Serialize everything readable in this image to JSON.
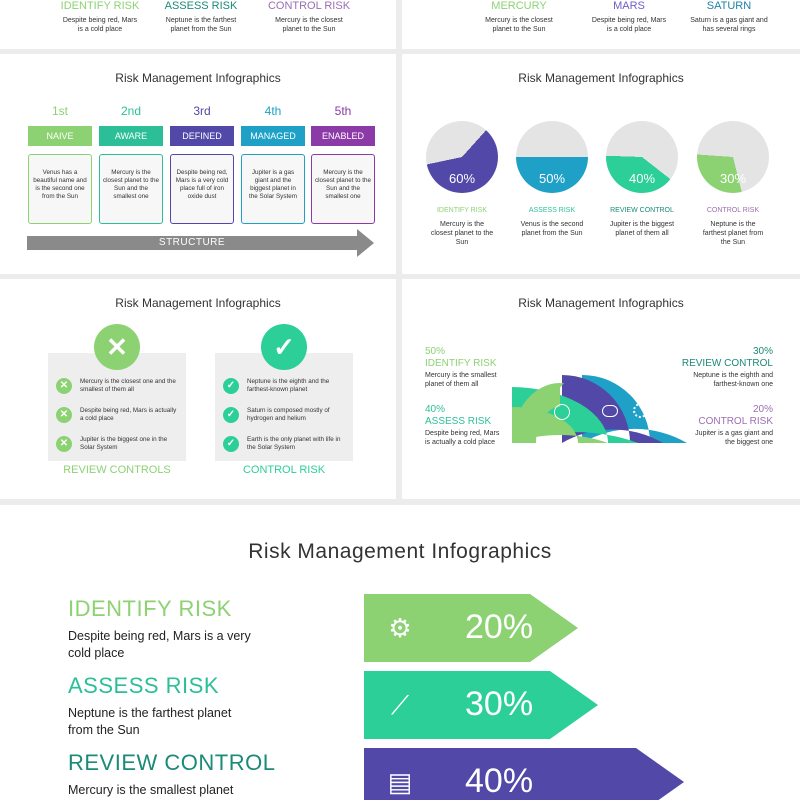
{
  "top_left": {
    "items": [
      {
        "title": "IDENTIFY RISK",
        "desc": "Despite being red, Mars is a cold place",
        "color": "#8cd273"
      },
      {
        "title": "ASSESS RISK",
        "desc": "Neptune is the farthest planet from the Sun",
        "color": "#1b8a78"
      },
      {
        "title": "CONTROL RISK",
        "desc": "Mercury is the closest planet to the Sun",
        "color": "#9b6fb1"
      }
    ]
  },
  "top_right": {
    "items": [
      {
        "title": "MERCURY",
        "desc": "Mercury is the closest planet to the Sun",
        "color": "#8cd273"
      },
      {
        "title": "MARS",
        "desc": "Despite being red, Mars is a cold place",
        "color": "#6c5fc7"
      },
      {
        "title": "SATURN",
        "desc": "Saturn is a gas giant and has several rings",
        "color": "#1f7fa6"
      }
    ]
  },
  "steps_slide": {
    "title": "Risk Management Infographics",
    "steps": [
      {
        "ordinal": "1st",
        "tag": "NAIVE",
        "desc": "Venus has a beautiful name and is the second one from the Sun",
        "color": "#8cd273"
      },
      {
        "ordinal": "2nd",
        "tag": "AWARE",
        "desc": "Mercury is the closest planet to the Sun and the smallest one",
        "color": "#2cbf97"
      },
      {
        "ordinal": "3rd",
        "tag": "DEFINED",
        "desc": "Despite being red, Mars is a very cold place full of iron oxide dust",
        "color": "#5148a8"
      },
      {
        "ordinal": "4th",
        "tag": "MANAGED",
        "desc": "Jupiter is a gas giant and the biggest planet in the Solar System",
        "color": "#1fa0c7"
      },
      {
        "ordinal": "5th",
        "tag": "ENABLED",
        "desc": "Mercury is the closest planet to the Sun and the smallest one",
        "color": "#8b3aa8"
      }
    ],
    "arrow_label": "STRUCTURE"
  },
  "pies_slide": {
    "title": "Risk Management Infographics",
    "pies": [
      {
        "value": 60,
        "label": "60%",
        "name": "IDENTIFY RISK",
        "desc": "Mercury is the closest planet to the Sun",
        "color": "#5148a8",
        "label_color": "#8cd273"
      },
      {
        "value": 50,
        "label": "50%",
        "name": "ASSESS RISK",
        "desc": "Venus is the second planet from the Sun",
        "color": "#1fa0c7",
        "label_color": "#2cbf97"
      },
      {
        "value": 40,
        "label": "40%",
        "name": "REVIEW CONTROL",
        "desc": "Jupiter is the biggest planet of them all",
        "color": "#2ccf97",
        "label_color": "#1b8a78"
      },
      {
        "value": 30,
        "label": "30%",
        "name": "CONTROL RISK",
        "desc": "Neptune is the farthest planet from the Sun",
        "color": "#8cd273",
        "label_color": "#9b6fb1"
      }
    ]
  },
  "review_slide": {
    "title": "Risk Management Infographics",
    "cards": [
      {
        "label": "REVIEW CONTROLS",
        "badge": "✕",
        "color": "#8cd273",
        "items": [
          "Mercury is the closest one and the smallest of them all",
          "Despite being red, Mars is actually a cold place",
          "Jupiter is the biggest one in the Solar System"
        ],
        "item_mark": "✕"
      },
      {
        "label": "CONTROL RISK",
        "badge": "✓",
        "color": "#2ccf97",
        "items": [
          "Neptune is the eighth and the farthest-known planet",
          "Saturn is composed mostly of hydrogen and helium",
          "Earth is the only planet with life in the Solar System"
        ],
        "item_mark": "✓"
      }
    ]
  },
  "ring_slide": {
    "title": "Risk Management Infographics",
    "left": [
      {
        "pct": "50%",
        "name": "IDENTIFY RISK",
        "desc": "Mercury is the smallest planet of them all",
        "color": "#8cd273"
      },
      {
        "pct": "40%",
        "name": "ASSESS RISK",
        "desc": "Despite being red, Mars is actually a cold place",
        "color": "#2cbf97"
      }
    ],
    "right": [
      {
        "pct": "30%",
        "name": "REVIEW CONTROL",
        "desc": "Neptune is the eighth and farthest-known one",
        "color": "#1b8a78"
      },
      {
        "pct": "20%",
        "name": "CONTROL RISK",
        "desc": "Jupiter is a gas giant and the biggest one",
        "color": "#9b6fb1"
      }
    ],
    "arc_colors": [
      "#8cd273",
      "#2ccf97",
      "#5148a8",
      "#1fa0c7"
    ],
    "icons": [
      "pie-chart-icon",
      "chat-icon",
      "gear-icon",
      "presentation-icon"
    ]
  },
  "main_slide": {
    "title": "Risk Management Infographics",
    "rows": [
      {
        "name": "IDENTIFY RISK",
        "desc": "Despite being red, Mars is a very cold place",
        "value": "20%",
        "color": "#8cd273",
        "head_color": "#8cd273",
        "icon": "location-gear-icon"
      },
      {
        "name": "ASSESS RISK",
        "desc": "Neptune is the farthest planet from the Sun",
        "value": "30%",
        "color": "#2ccf97",
        "head_color": "#2cbf97",
        "icon": "line-chart-icon"
      },
      {
        "name": "REVIEW CONTROL",
        "desc": "Mercury is the smallest planet",
        "value": "40%",
        "color": "#5148a8",
        "head_color": "#1b8a78",
        "icon": "clipboard-icon"
      }
    ]
  }
}
